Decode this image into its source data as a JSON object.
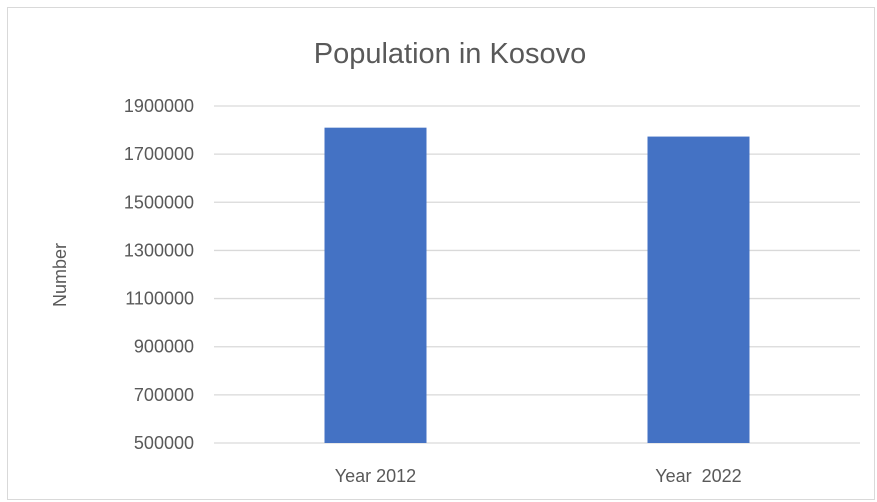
{
  "chart_data": {
    "type": "bar",
    "title": "Population in Kosovo",
    "xlabel": "",
    "ylabel": "Number",
    "categories": [
      "Year 2012",
      "Year  2022"
    ],
    "values": [
      1810000,
      1773000
    ],
    "ylim": [
      500000,
      1900000
    ],
    "yticks": [
      500000,
      700000,
      900000,
      1100000,
      1300000,
      1500000,
      1700000,
      1900000
    ],
    "ytick_labels": [
      "500000",
      "700000",
      "900000",
      "1100000",
      "1300000",
      "1500000",
      "1700000",
      "1900000"
    ],
    "bar_color": "#4472c4",
    "grid": true,
    "legend": "none"
  }
}
